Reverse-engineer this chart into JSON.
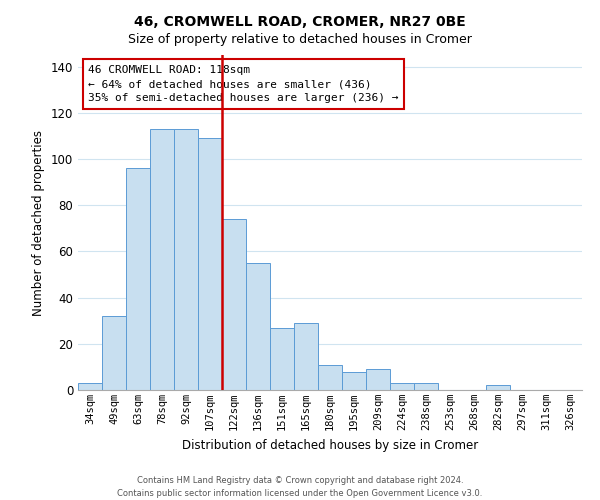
{
  "title": "46, CROMWELL ROAD, CROMER, NR27 0BE",
  "subtitle": "Size of property relative to detached houses in Cromer",
  "xlabel": "Distribution of detached houses by size in Cromer",
  "ylabel": "Number of detached properties",
  "bar_labels": [
    "34sqm",
    "49sqm",
    "63sqm",
    "78sqm",
    "92sqm",
    "107sqm",
    "122sqm",
    "136sqm",
    "151sqm",
    "165sqm",
    "180sqm",
    "195sqm",
    "209sqm",
    "224sqm",
    "238sqm",
    "253sqm",
    "268sqm",
    "282sqm",
    "297sqm",
    "311sqm",
    "326sqm"
  ],
  "bar_heights": [
    3,
    32,
    96,
    113,
    113,
    109,
    74,
    55,
    27,
    29,
    11,
    8,
    9,
    3,
    3,
    0,
    0,
    2,
    0,
    0,
    0
  ],
  "bar_color": "#c8dff0",
  "bar_edge_color": "#5b9bd5",
  "vline_index": 5,
  "vline_color": "#cc0000",
  "annotation_title": "46 CROMWELL ROAD: 118sqm",
  "annotation_line1": "← 64% of detached houses are smaller (436)",
  "annotation_line2": "35% of semi-detached houses are larger (236) →",
  "annotation_box_color": "#ffffff",
  "annotation_border_color": "#cc0000",
  "ylim": [
    0,
    145
  ],
  "yticks": [
    0,
    20,
    40,
    60,
    80,
    100,
    120,
    140
  ],
  "footer_line1": "Contains HM Land Registry data © Crown copyright and database right 2024.",
  "footer_line2": "Contains public sector information licensed under the Open Government Licence v3.0.",
  "background_color": "#ffffff",
  "grid_color": "#d0e4f0"
}
